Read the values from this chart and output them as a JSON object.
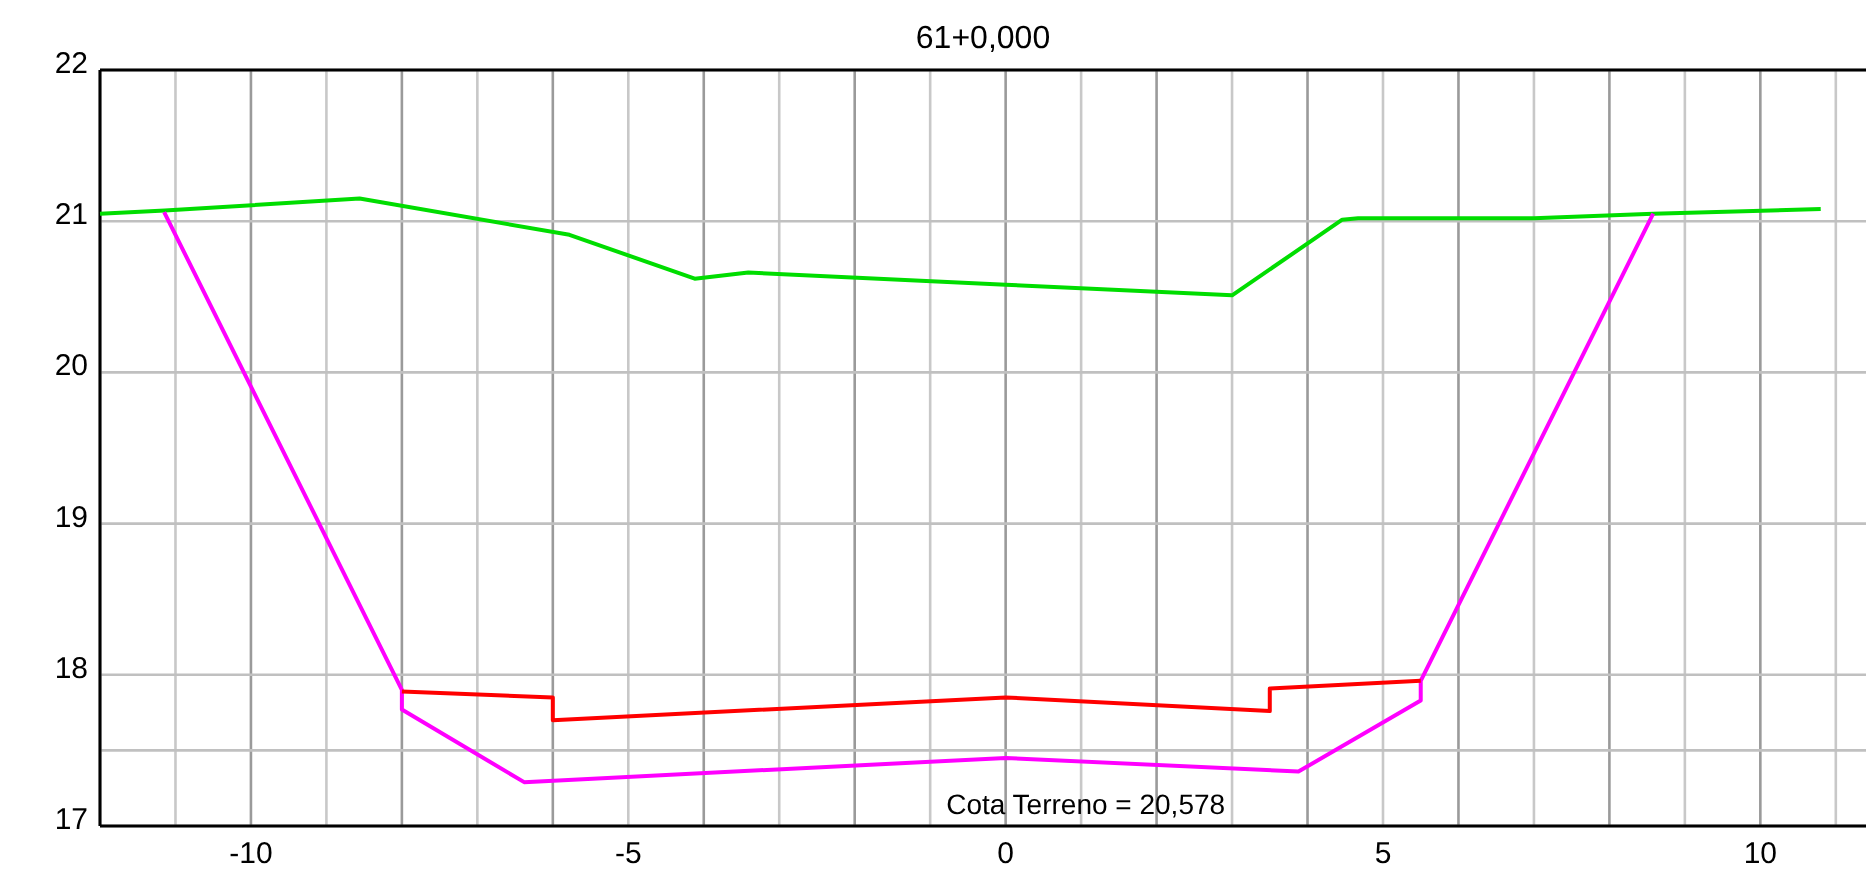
{
  "chart_data": {
    "type": "line",
    "title": "61+0,000",
    "annotations": [
      "Cota Terreno = 20,578"
    ],
    "xlim": [
      -12,
      11.4
    ],
    "xticks": [
      {
        "value": -12,
        "label": null
      },
      {
        "value": -11,
        "label": null
      },
      -10,
      {
        "value": -9,
        "label": null
      },
      {
        "value": -8,
        "label": null
      },
      {
        "value": -7,
        "label": null
      },
      {
        "value": -6,
        "label": null
      },
      -5,
      {
        "value": -4,
        "label": null
      },
      {
        "value": -3,
        "label": null
      },
      {
        "value": -2,
        "label": null
      },
      {
        "value": -1,
        "label": null
      },
      0,
      {
        "value": 1,
        "label": null
      },
      {
        "value": 2,
        "label": null
      },
      {
        "value": 3,
        "label": null
      },
      {
        "value": 4,
        "label": null
      },
      5,
      {
        "value": 6,
        "label": null
      },
      {
        "value": 7,
        "label": null
      },
      {
        "value": 8,
        "label": null
      },
      {
        "value": 9,
        "label": null
      },
      10,
      {
        "value": 11,
        "label": null
      }
    ],
    "ylim": [
      17,
      22
    ],
    "yticks": [
      17,
      {
        "value": 17.5,
        "label": null
      },
      18,
      19,
      20,
      21,
      22
    ],
    "grid": true,
    "marker": "none",
    "line_style": "solid",
    "series": [
      {
        "color": "#00dd00",
        "x": [
          -12,
          -11.14,
          -8.56,
          -5.78,
          -4.12,
          -3.41,
          0,
          3.0,
          4.46,
          4.67,
          7.0,
          8.58,
          10.8
        ],
        "values": [
          21.05,
          21.07,
          21.15,
          20.91,
          20.62,
          20.66,
          20.58,
          20.51,
          21.01,
          21.02,
          21.02,
          21.05,
          21.08
        ]
      },
      {
        "color": "#ff00ff",
        "x": [
          -11.15,
          -8.0,
          -8.0,
          -6.38,
          0,
          3.88,
          5.5,
          5.5,
          8.58
        ],
        "values": [
          21.06,
          17.9,
          17.77,
          17.29,
          17.45,
          17.36,
          17.83,
          17.96,
          21.05
        ]
      },
      {
        "color": "#ff0000",
        "x": [
          -8.0,
          -6.0,
          -6.0,
          0,
          3.5,
          3.5,
          5.5
        ],
        "values": [
          17.89,
          17.85,
          17.7,
          17.85,
          17.76,
          17.91,
          17.96
        ]
      }
    ]
  }
}
